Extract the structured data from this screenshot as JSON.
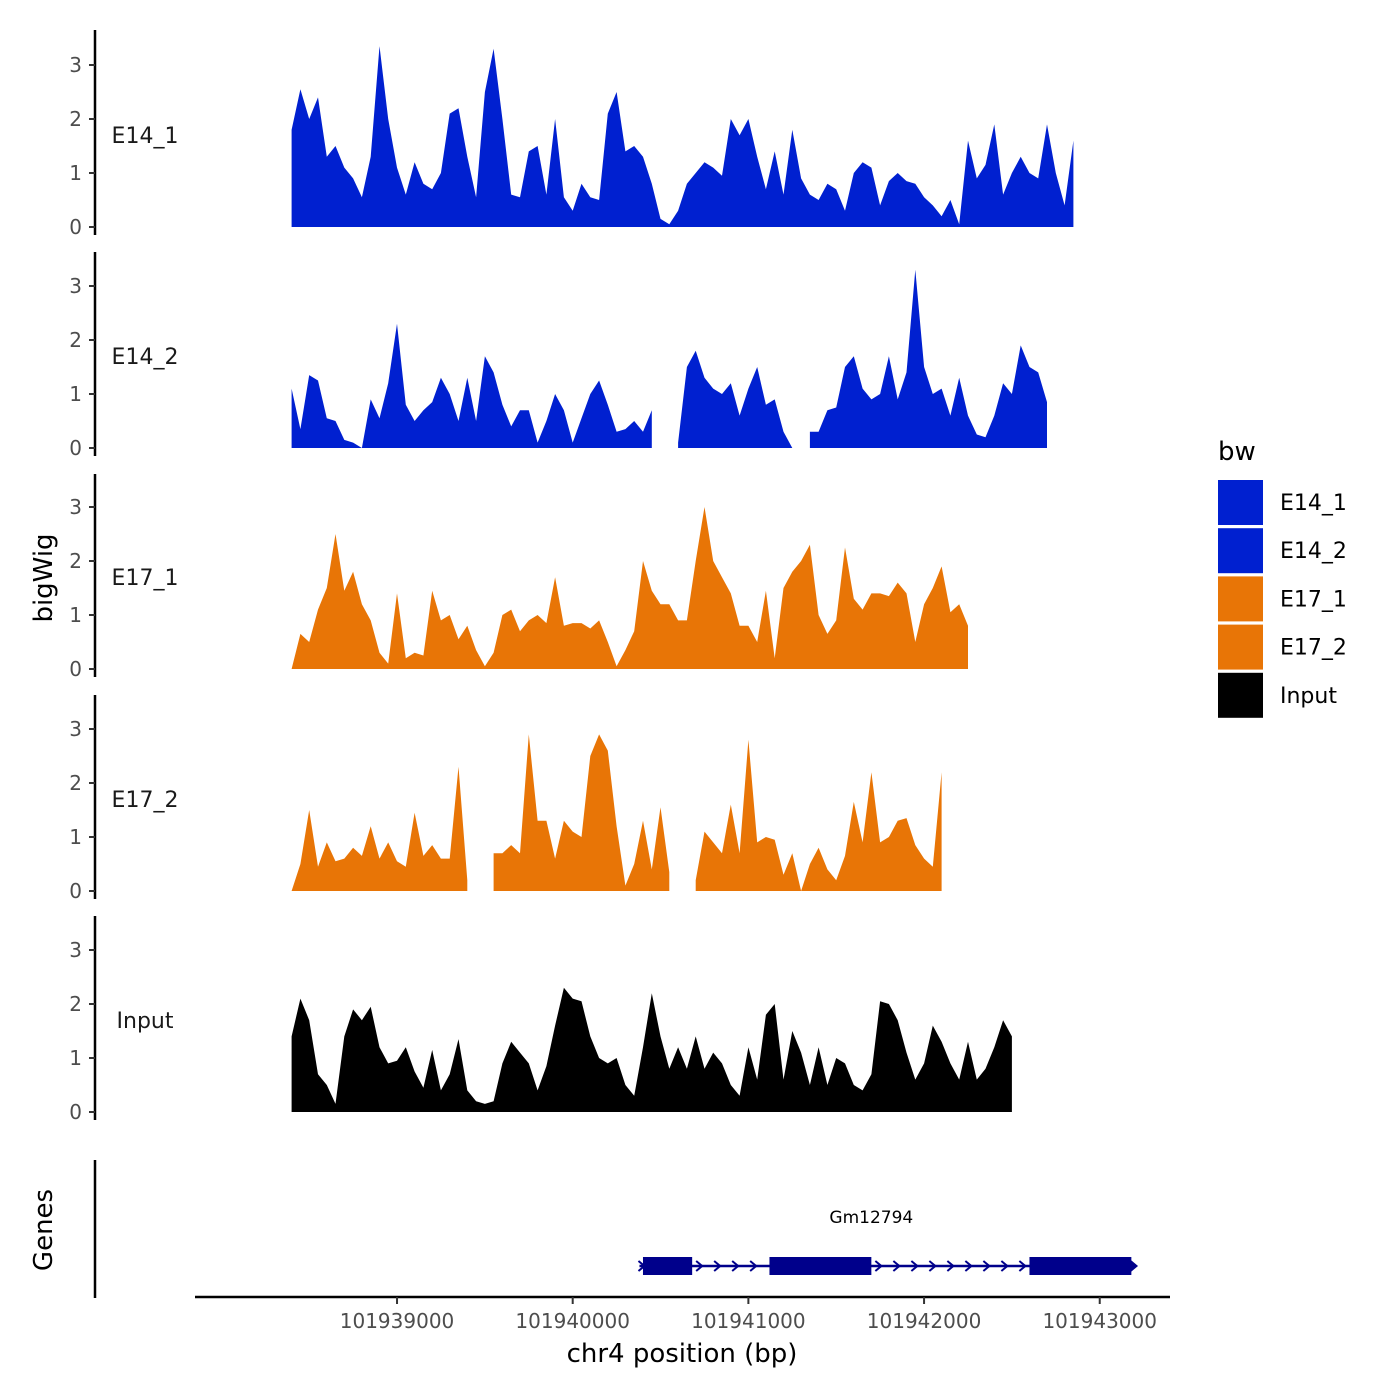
{
  "chart_data": {
    "type": "area",
    "title": "",
    "xlabel": "chr4 position (bp)",
    "ylabel": "bigWig",
    "genes_label": "Genes",
    "xlim": [
      101937850,
      101943400
    ],
    "ylim": [
      0,
      3.6
    ],
    "x_ticks": [
      101939000,
      101940000,
      101941000,
      101942000,
      101943000
    ],
    "x_tick_labels": [
      "101939000",
      "101940000",
      "101941000",
      "101942000",
      "101943000"
    ],
    "y_ticks": [
      0,
      1,
      2,
      3
    ],
    "y_tick_labels": [
      "0",
      "1",
      "2",
      "3"
    ],
    "legend": {
      "title": "bw",
      "entries": [
        {
          "label": "E14_1",
          "color": "#0020D0"
        },
        {
          "label": "E14_2",
          "color": "#0020D0"
        },
        {
          "label": "E17_1",
          "color": "#E87506"
        },
        {
          "label": "E17_2",
          "color": "#E87506"
        },
        {
          "label": "Input",
          "color": "#000000"
        }
      ]
    },
    "x_start": 101938400,
    "x_step": 50,
    "series": [
      {
        "name": "E14_1",
        "color": "#0020D0",
        "values": [
          1.8,
          2.55,
          2.0,
          2.4,
          1.3,
          1.5,
          1.1,
          0.9,
          0.55,
          1.3,
          3.35,
          2.0,
          1.1,
          0.6,
          1.2,
          0.8,
          0.7,
          1.0,
          2.1,
          2.2,
          1.3,
          0.55,
          2.5,
          3.3,
          2.0,
          0.6,
          0.55,
          1.4,
          1.5,
          0.6,
          2.0,
          0.55,
          0.3,
          0.8,
          0.55,
          0.5,
          2.1,
          2.5,
          1.4,
          1.5,
          1.3,
          0.8,
          0.15,
          0.05,
          0.3,
          0.8,
          1.0,
          1.2,
          1.1,
          0.95,
          2.0,
          1.7,
          2.0,
          1.3,
          0.7,
          1.4,
          0.6,
          1.8,
          0.9,
          0.6,
          0.5,
          0.8,
          0.7,
          0.3,
          1.0,
          1.2,
          1.1,
          0.4,
          0.85,
          1.0,
          0.85,
          0.8,
          0.55,
          0.4,
          0.2,
          0.5,
          0.05,
          1.6,
          0.9,
          1.15,
          1.9,
          0.6,
          1.0,
          1.3,
          1.0,
          0.9,
          1.9,
          1.0,
          0.4,
          1.6
        ]
      },
      {
        "name": "E14_2",
        "color": "#0020D0",
        "values": [
          1.1,
          0.35,
          1.35,
          1.25,
          0.55,
          0.5,
          0.15,
          0.1,
          0.0,
          0.9,
          0.55,
          1.2,
          2.3,
          0.8,
          0.5,
          0.7,
          0.85,
          1.3,
          1.0,
          0.5,
          1.3,
          0.5,
          1.7,
          1.4,
          0.8,
          0.4,
          0.7,
          0.7,
          0.1,
          0.5,
          1.0,
          0.7,
          0.1,
          0.55,
          1.0,
          1.25,
          0.8,
          0.3,
          0.35,
          0.5,
          0.3,
          0.7,
          null,
          null,
          0.1,
          1.5,
          1.8,
          1.3,
          1.1,
          1.0,
          1.2,
          0.6,
          1.1,
          1.5,
          0.8,
          0.9,
          0.3,
          0.0,
          null,
          0.3,
          0.3,
          0.7,
          0.75,
          1.5,
          1.7,
          1.1,
          0.9,
          1.0,
          1.7,
          0.9,
          1.4,
          3.3,
          1.5,
          1.0,
          1.1,
          0.6,
          1.3,
          0.6,
          0.25,
          0.2,
          0.6,
          1.2,
          1.0,
          1.9,
          1.5,
          1.4,
          0.85
        ]
      },
      {
        "name": "E17_1",
        "color": "#E87506",
        "values": [
          0.0,
          0.65,
          0.5,
          1.1,
          1.5,
          2.5,
          1.45,
          1.8,
          1.2,
          0.9,
          0.3,
          0.1,
          1.4,
          0.2,
          0.3,
          0.25,
          1.45,
          0.9,
          1.0,
          0.55,
          0.8,
          0.35,
          0.05,
          0.3,
          1.0,
          1.1,
          0.7,
          0.9,
          1.0,
          0.85,
          1.7,
          0.8,
          0.85,
          0.85,
          0.75,
          0.9,
          0.5,
          0.05,
          0.35,
          0.7,
          2.0,
          1.45,
          1.2,
          1.2,
          0.9,
          0.9,
          2.0,
          3.0,
          2.0,
          1.7,
          1.4,
          0.8,
          0.8,
          0.5,
          1.45,
          0.2,
          1.5,
          1.8,
          2.0,
          2.3,
          1.0,
          0.65,
          0.9,
          2.25,
          1.3,
          1.1,
          1.4,
          1.4,
          1.35,
          1.6,
          1.4,
          0.5,
          1.2,
          1.5,
          1.9,
          1.05,
          1.2,
          0.8
        ]
      },
      {
        "name": "E17_2",
        "color": "#E87506",
        "values": [
          0.0,
          0.5,
          1.5,
          0.45,
          0.9,
          0.55,
          0.6,
          0.8,
          0.65,
          1.2,
          0.6,
          0.9,
          0.55,
          0.45,
          1.45,
          0.65,
          0.85,
          0.6,
          0.6,
          2.3,
          0.2,
          null,
          null,
          0.7,
          0.7,
          0.85,
          0.7,
          2.9,
          1.3,
          1.3,
          0.6,
          1.3,
          1.1,
          1.0,
          2.5,
          2.9,
          2.6,
          1.2,
          0.1,
          0.5,
          1.3,
          0.4,
          1.55,
          0.35,
          null,
          null,
          0.2,
          1.1,
          0.9,
          0.7,
          1.6,
          0.7,
          2.8,
          0.9,
          1.0,
          0.95,
          0.3,
          0.7,
          0.0,
          0.5,
          0.8,
          0.4,
          0.2,
          0.65,
          1.65,
          0.9,
          2.2,
          0.9,
          1.0,
          1.3,
          1.35,
          0.85,
          0.6,
          0.45,
          2.2
        ]
      },
      {
        "name": "Input",
        "color": "#000000",
        "values": [
          1.4,
          2.1,
          1.7,
          0.7,
          0.5,
          0.15,
          1.4,
          1.9,
          1.7,
          1.95,
          1.2,
          0.9,
          0.95,
          1.2,
          0.75,
          0.45,
          1.15,
          0.4,
          0.7,
          1.35,
          0.4,
          0.2,
          0.15,
          0.2,
          0.9,
          1.3,
          1.1,
          0.9,
          0.4,
          0.85,
          1.6,
          2.3,
          2.1,
          2.05,
          1.4,
          1.0,
          0.9,
          1.0,
          0.5,
          0.3,
          1.2,
          2.2,
          1.4,
          0.8,
          1.2,
          0.8,
          1.4,
          0.8,
          1.1,
          0.9,
          0.5,
          0.3,
          1.2,
          0.6,
          1.8,
          2.0,
          0.6,
          1.5,
          1.1,
          0.5,
          1.2,
          0.5,
          1.0,
          0.9,
          0.5,
          0.4,
          0.7,
          2.05,
          2.0,
          1.7,
          1.1,
          0.6,
          0.9,
          1.6,
          1.3,
          0.9,
          0.6,
          1.3,
          0.6,
          0.8,
          1.2,
          1.7,
          1.4
        ]
      }
    ],
    "genes": [
      {
        "name": "Gm12794",
        "color": "#00008B",
        "start": 101940380,
        "end": 101943200,
        "label_position": 101941700,
        "exons": [
          [
            101940400,
            101940680
          ],
          [
            101941120,
            101941700
          ],
          [
            101942600,
            101943180
          ]
        ]
      }
    ]
  }
}
